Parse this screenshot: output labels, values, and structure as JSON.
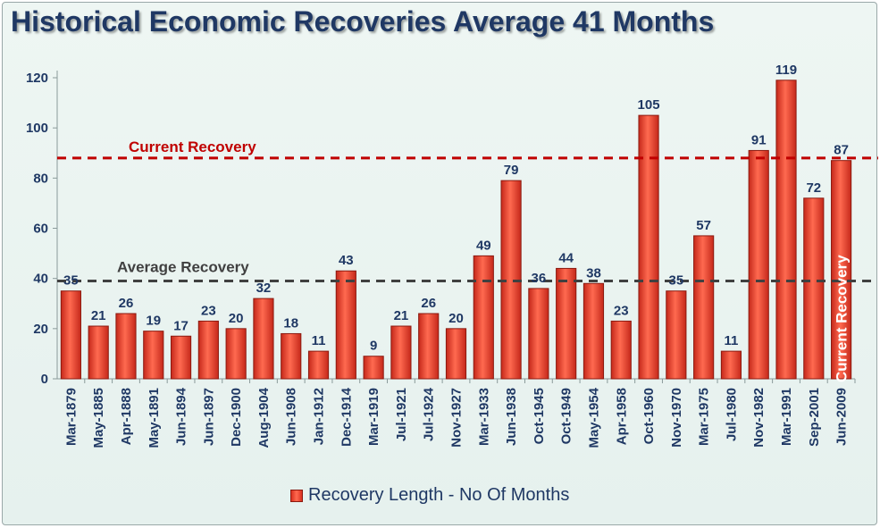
{
  "chart_data": {
    "type": "bar",
    "title": "Historical Economic Recoveries Average 41 Months",
    "categories": [
      "Mar-1879",
      "May-1885",
      "Apr-1888",
      "May-1891",
      "Jun-1894",
      "Jun-1897",
      "Dec-1900",
      "Aug-1904",
      "Jun-1908",
      "Jan-1912",
      "Dec-1914",
      "Mar-1919",
      "Jul-1921",
      "Jul-1924",
      "Nov-1927",
      "Mar-1933",
      "Jun-1938",
      "Oct-1945",
      "Oct-1949",
      "May-1954",
      "Apr-1958",
      "Oct-1960",
      "Nov-1970",
      "Mar-1975",
      "Jul-1980",
      "Nov-1982",
      "Mar-1991",
      "Sep-2001",
      "Jun-2009"
    ],
    "series": [
      {
        "name": "Recovery Length - No Of Months",
        "values": [
          35,
          21,
          26,
          19,
          17,
          23,
          20,
          32,
          18,
          11,
          43,
          9,
          21,
          26,
          20,
          49,
          79,
          36,
          44,
          38,
          23,
          105,
          35,
          57,
          11,
          91,
          119,
          72,
          87
        ],
        "color": "#e8392a"
      }
    ],
    "ylim": [
      0,
      120
    ],
    "yticks": [
      "0",
      "20",
      "40",
      "60",
      "80",
      "100",
      "120"
    ],
    "grid": false,
    "legend_position": "bottom",
    "reference_lines": [
      {
        "label": "Current Recovery",
        "value": 88,
        "color": "#c00000"
      },
      {
        "label": "Average Recovery",
        "value": 39,
        "color": "#404040"
      }
    ],
    "bar_annotation": "Current Recovery"
  }
}
